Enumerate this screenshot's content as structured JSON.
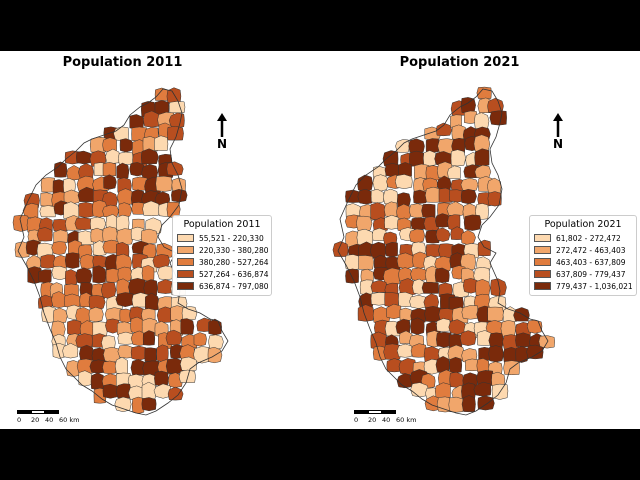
{
  "maps": [
    {
      "title": "Population 2011",
      "legend": {
        "title": "Population 2011",
        "items": [
          {
            "label": "55,521 - 220,330",
            "color": "#fdd9b0"
          },
          {
            "label": "220,330 - 380,280",
            "color": "#f1a66b"
          },
          {
            "label": "380,280 - 527,264",
            "color": "#e07c3e"
          },
          {
            "label": "527,264 - 636,874",
            "color": "#b84e1f"
          },
          {
            "label": "636,874 - 797,080",
            "color": "#7a2a0b"
          }
        ]
      }
    },
    {
      "title": "Population 2021",
      "legend": {
        "title": "Population 2021",
        "items": [
          {
            "label": "61,802 - 272,472",
            "color": "#fdd9b0"
          },
          {
            "label": "272,472 - 463,403",
            "color": "#f1a66b"
          },
          {
            "label": "463,403 - 637,809",
            "color": "#e07c3e"
          },
          {
            "label": "637,809 - 779,437",
            "color": "#b84e1f"
          },
          {
            "label": "779,437 - 1,036,021",
            "color": "#7a2a0b"
          }
        ]
      }
    }
  ],
  "north_label": "N",
  "scalebar": {
    "ticks": [
      "0",
      "20",
      "40",
      "60 km"
    ]
  },
  "outline_color": "#333333"
}
